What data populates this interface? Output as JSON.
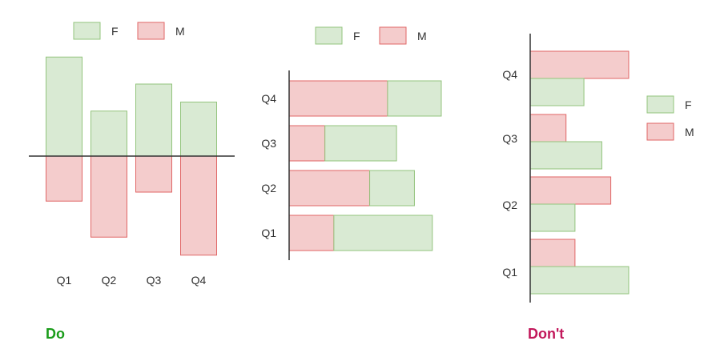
{
  "colors": {
    "F_fill": "#d9ead3",
    "F_stroke": "#93c47d",
    "M_fill": "#f4cccc",
    "M_stroke": "#e06666",
    "axis": "#333333",
    "do": "#1a9c1a",
    "dont": "#c2185b"
  },
  "captions": {
    "do": "Do",
    "dont": "Don't"
  },
  "chart_data": [
    {
      "type": "bar",
      "orientation": "vertical-diverging",
      "categories": [
        "Q1",
        "Q2",
        "Q3",
        "Q4"
      ],
      "series": [
        {
          "name": "F",
          "values": [
            5.5,
            2.5,
            4,
            3
          ]
        },
        {
          "name": "M",
          "values": [
            -2.5,
            -4.5,
            -2,
            -5.5
          ]
        }
      ],
      "legend": {
        "entries": [
          "F",
          "M"
        ],
        "position": "top"
      },
      "grid": false
    },
    {
      "type": "bar",
      "orientation": "horizontal-stacked",
      "categories": [
        "Q1",
        "Q2",
        "Q3",
        "Q4"
      ],
      "series": [
        {
          "name": "M",
          "values": [
            2.5,
            4.5,
            2,
            5.5
          ]
        },
        {
          "name": "F",
          "values": [
            5.5,
            2.5,
            4,
            3
          ]
        }
      ],
      "legend": {
        "entries": [
          "F",
          "M"
        ],
        "position": "top"
      },
      "grid": false
    },
    {
      "type": "bar",
      "orientation": "horizontal-grouped",
      "categories": [
        "Q1",
        "Q2",
        "Q3",
        "Q4"
      ],
      "series": [
        {
          "name": "F",
          "values": [
            5.5,
            2.5,
            4,
            3
          ]
        },
        {
          "name": "M",
          "values": [
            2.5,
            4.5,
            2,
            5.5
          ]
        }
      ],
      "legend": {
        "entries": [
          "F",
          "M"
        ],
        "position": "right"
      },
      "grid": false
    }
  ]
}
